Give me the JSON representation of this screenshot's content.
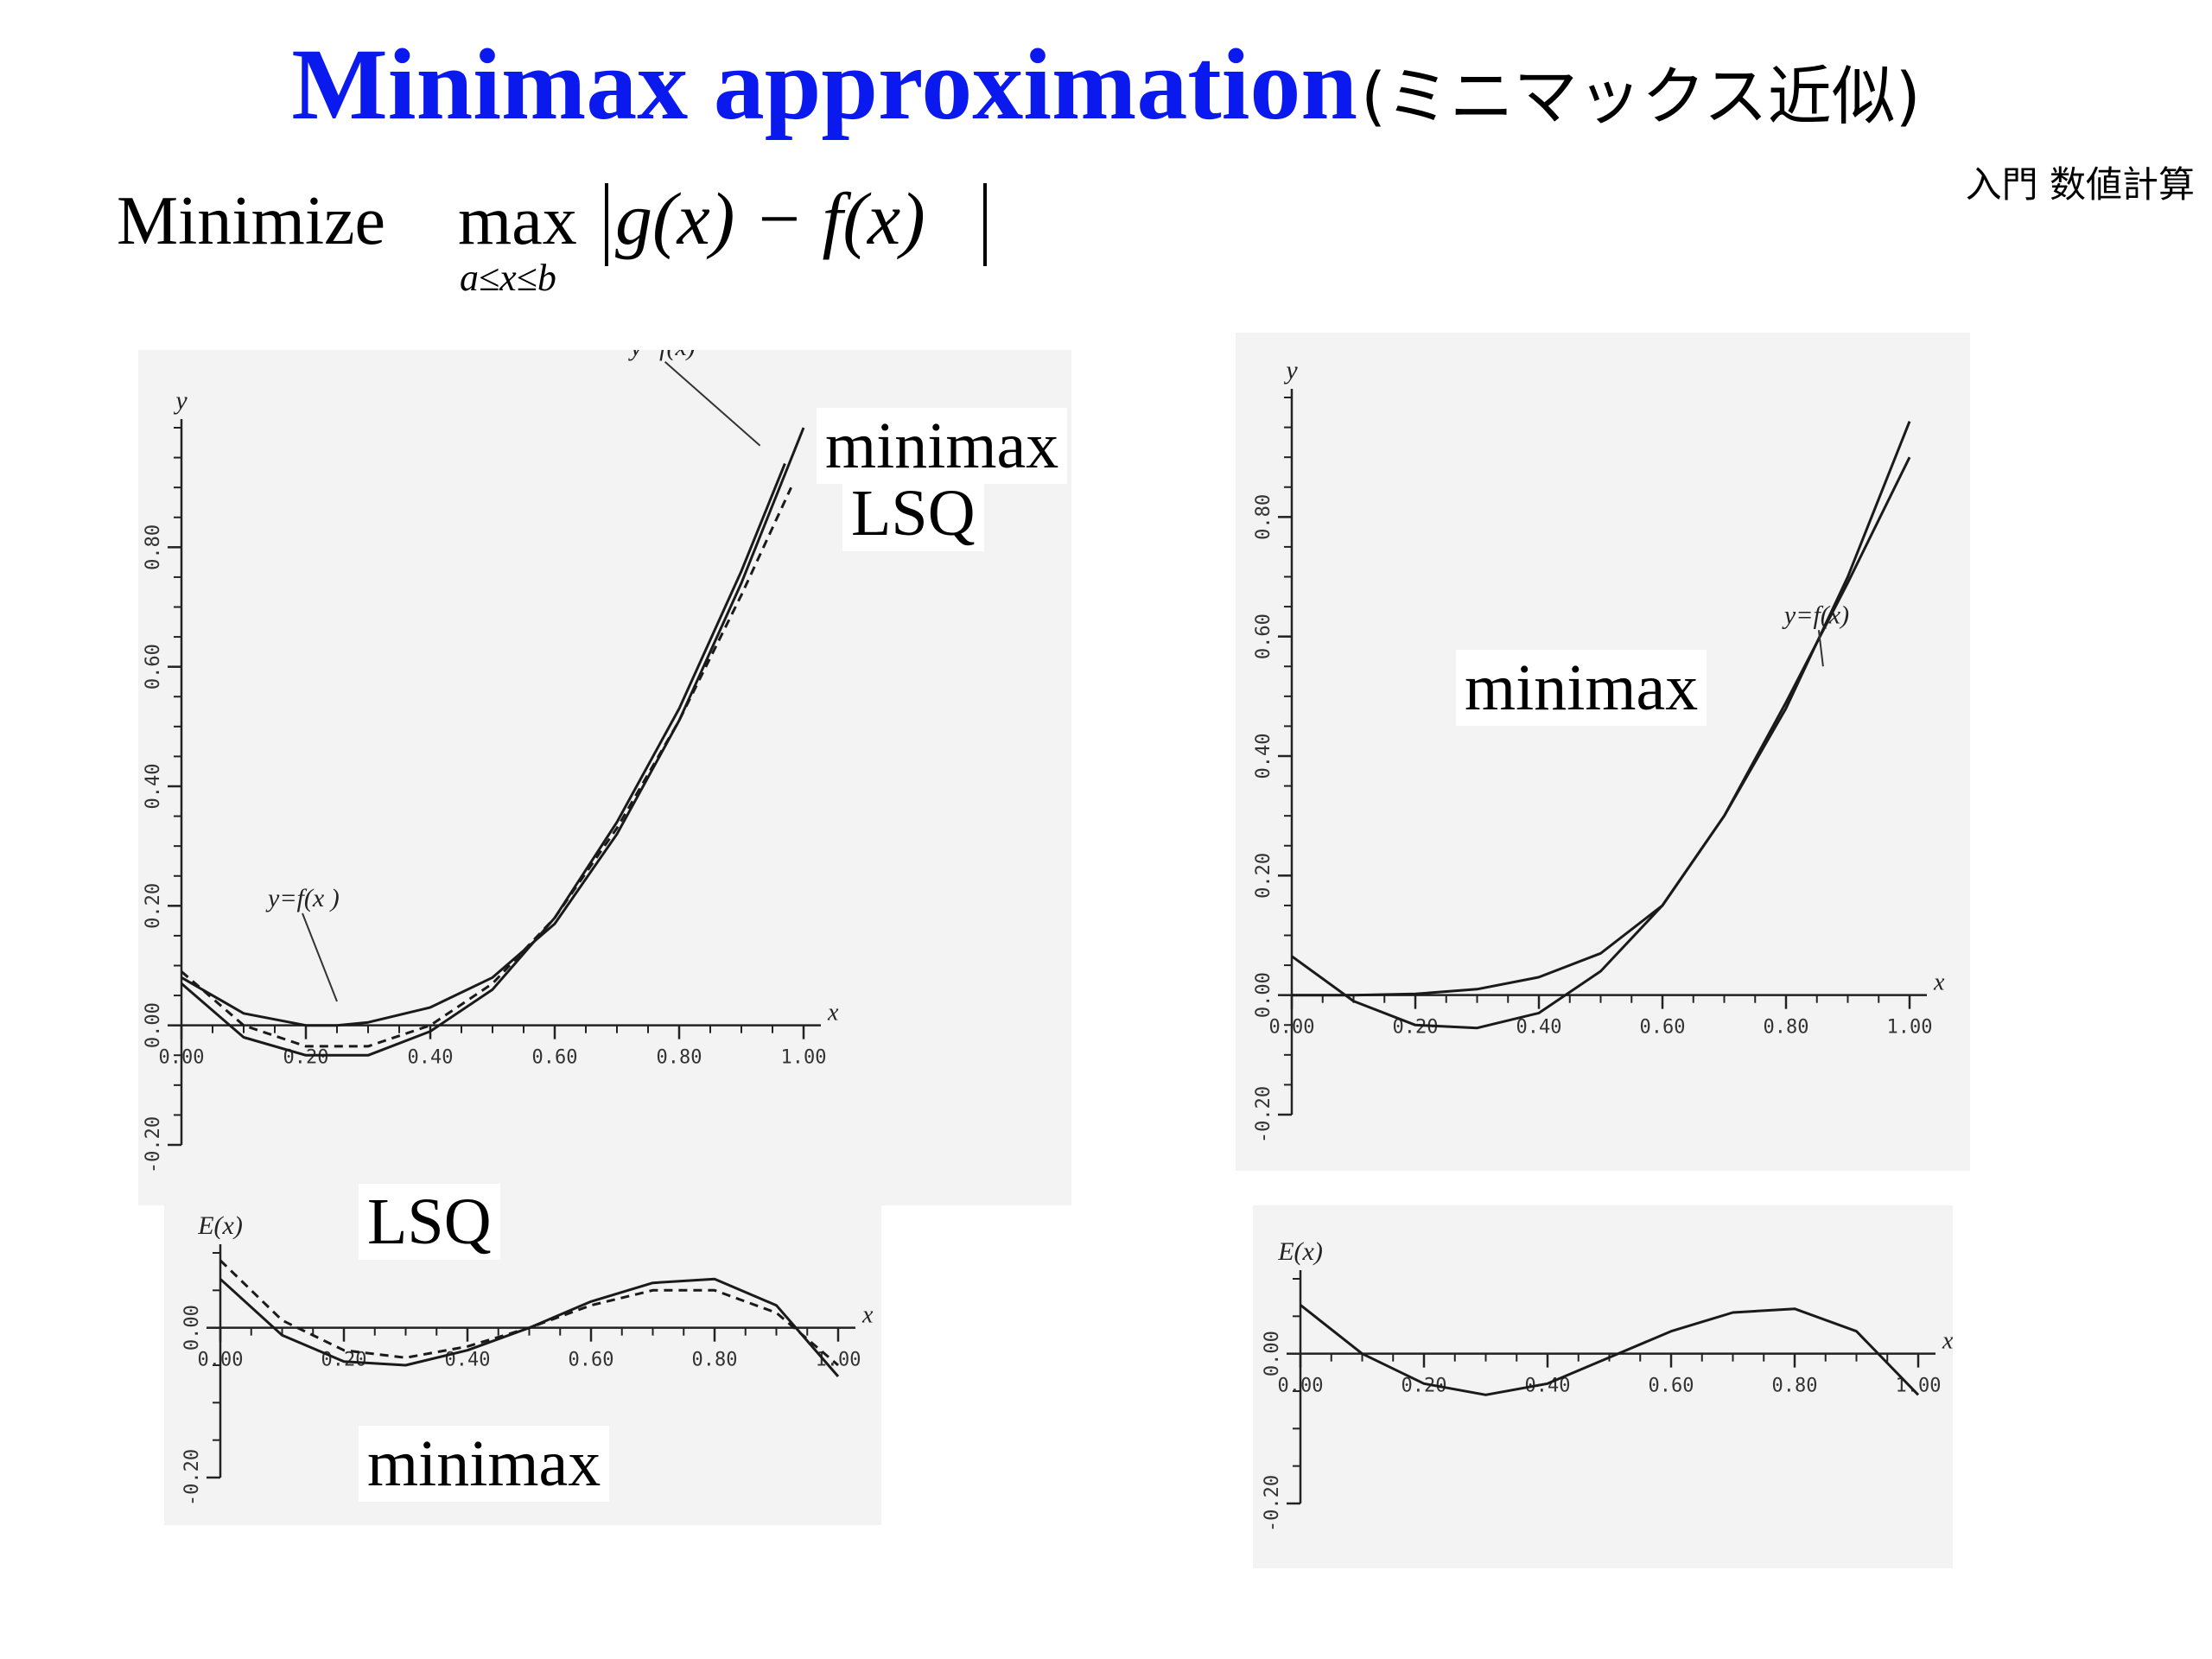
{
  "title": {
    "main": "Minimax approximation",
    "sub": "(ミニマックス近似)"
  },
  "source": "入門 数値計算",
  "formula": {
    "word": "Minimize",
    "operator": "max",
    "range": "a≤x≤b",
    "expression": "g(x) − f(x)"
  },
  "chart_data": [
    {
      "id": "left-top",
      "type": "line",
      "xlabel": "x",
      "ylabel": "y",
      "xlim": [
        0,
        1
      ],
      "ylim": [
        -0.2,
        1.0
      ],
      "xticks": [
        "0.00",
        "0.20",
        "0.40",
        "0.60",
        "0.80",
        "1.00"
      ],
      "yticks": [
        "-0.20",
        "0.00",
        "0.20",
        "0.40",
        "0.60",
        "0.80"
      ],
      "series": [
        {
          "style": "solid",
          "x": [
            0,
            0.1,
            0.2,
            0.25,
            0.3,
            0.4,
            0.5,
            0.6,
            0.7,
            0.8,
            0.9,
            1.0
          ],
          "y": [
            0.08,
            0.02,
            0.0,
            0.0,
            0.005,
            0.03,
            0.08,
            0.17,
            0.32,
            0.51,
            0.74,
            1.0
          ]
        },
        {
          "style": "solid",
          "x": [
            0,
            0.1,
            0.2,
            0.3,
            0.4,
            0.5,
            0.6,
            0.7,
            0.8,
            0.9,
            0.97
          ],
          "y": [
            0.07,
            -0.02,
            -0.05,
            -0.05,
            -0.01,
            0.06,
            0.18,
            0.34,
            0.53,
            0.76,
            0.94
          ]
        },
        {
          "style": "dashed",
          "x": [
            0,
            0.1,
            0.2,
            0.3,
            0.4,
            0.5,
            0.6,
            0.7,
            0.8,
            0.9,
            0.98
          ],
          "y": [
            0.09,
            0.0,
            -0.035,
            -0.035,
            0.0,
            0.07,
            0.18,
            0.33,
            0.51,
            0.72,
            0.9
          ]
        }
      ],
      "annotations": [
        "y=f(x)",
        "y=f(x )"
      ],
      "labels": [
        "minimax",
        "LSQ"
      ]
    },
    {
      "id": "left-bottom",
      "type": "line",
      "xlabel": "x",
      "ylabel": "E(x)",
      "xlim": [
        0,
        1
      ],
      "ylim": [
        -0.2,
        0.1
      ],
      "xticks": [
        "0.00",
        "0.20",
        "0.40",
        "0.60",
        "0.80",
        "1.00"
      ],
      "yticks": [
        "-0.20",
        "0.00"
      ],
      "series": [
        {
          "style": "solid",
          "x": [
            0,
            0.1,
            0.2,
            0.3,
            0.4,
            0.5,
            0.6,
            0.7,
            0.8,
            0.9,
            1.0
          ],
          "y": [
            0.065,
            -0.01,
            -0.045,
            -0.05,
            -0.03,
            0.0,
            0.035,
            0.06,
            0.065,
            0.03,
            -0.065
          ]
        },
        {
          "style": "dashed",
          "x": [
            0,
            0.1,
            0.2,
            0.3,
            0.4,
            0.5,
            0.6,
            0.7,
            0.8,
            0.9,
            1.0
          ],
          "y": [
            0.09,
            0.01,
            -0.03,
            -0.04,
            -0.025,
            0.0,
            0.03,
            0.05,
            0.05,
            0.02,
            -0.05
          ]
        }
      ],
      "labels": [
        "LSQ",
        "minimax"
      ]
    },
    {
      "id": "right-top",
      "type": "line",
      "xlabel": "x",
      "ylabel": "y",
      "xlim": [
        0,
        1
      ],
      "ylim": [
        -0.2,
        1.0
      ],
      "xticks": [
        "0.00",
        "0.20",
        "0.40",
        "0.60",
        "0.80",
        "1.00"
      ],
      "yticks": [
        "-0.20",
        "0.00",
        "0.20",
        "0.40",
        "0.60",
        "0.80"
      ],
      "series": [
        {
          "style": "solid",
          "x": [
            0,
            0.1,
            0.2,
            0.3,
            0.4,
            0.5,
            0.6,
            0.7,
            0.8,
            0.9,
            1.0
          ],
          "y": [
            0.0,
            0.0,
            0.002,
            0.01,
            0.03,
            0.07,
            0.15,
            0.3,
            0.48,
            0.7,
            0.96
          ]
        },
        {
          "style": "solid",
          "x": [
            0,
            0.1,
            0.2,
            0.3,
            0.4,
            0.5,
            0.6,
            0.7,
            0.8,
            0.9,
            1.0
          ],
          "y": [
            0.065,
            -0.01,
            -0.05,
            -0.055,
            -0.03,
            0.04,
            0.15,
            0.3,
            0.49,
            0.69,
            0.9
          ]
        }
      ],
      "annotations": [
        "y=f(x)"
      ],
      "labels": [
        "minimax"
      ]
    },
    {
      "id": "right-bottom",
      "type": "line",
      "xlabel": "x",
      "ylabel": "E(x)",
      "xlim": [
        0,
        1
      ],
      "ylim": [
        -0.2,
        0.1
      ],
      "xticks": [
        "0.00",
        "0.20",
        "0.40",
        "0.60",
        "0.80",
        "1.00"
      ],
      "yticks": [
        "-0.20",
        "0.00"
      ],
      "series": [
        {
          "style": "solid",
          "x": [
            0,
            0.1,
            0.2,
            0.3,
            0.4,
            0.5,
            0.6,
            0.7,
            0.8,
            0.9,
            1.0
          ],
          "y": [
            0.065,
            0.0,
            -0.04,
            -0.055,
            -0.04,
            -0.005,
            0.03,
            0.055,
            0.06,
            0.03,
            -0.055
          ]
        }
      ]
    }
  ]
}
